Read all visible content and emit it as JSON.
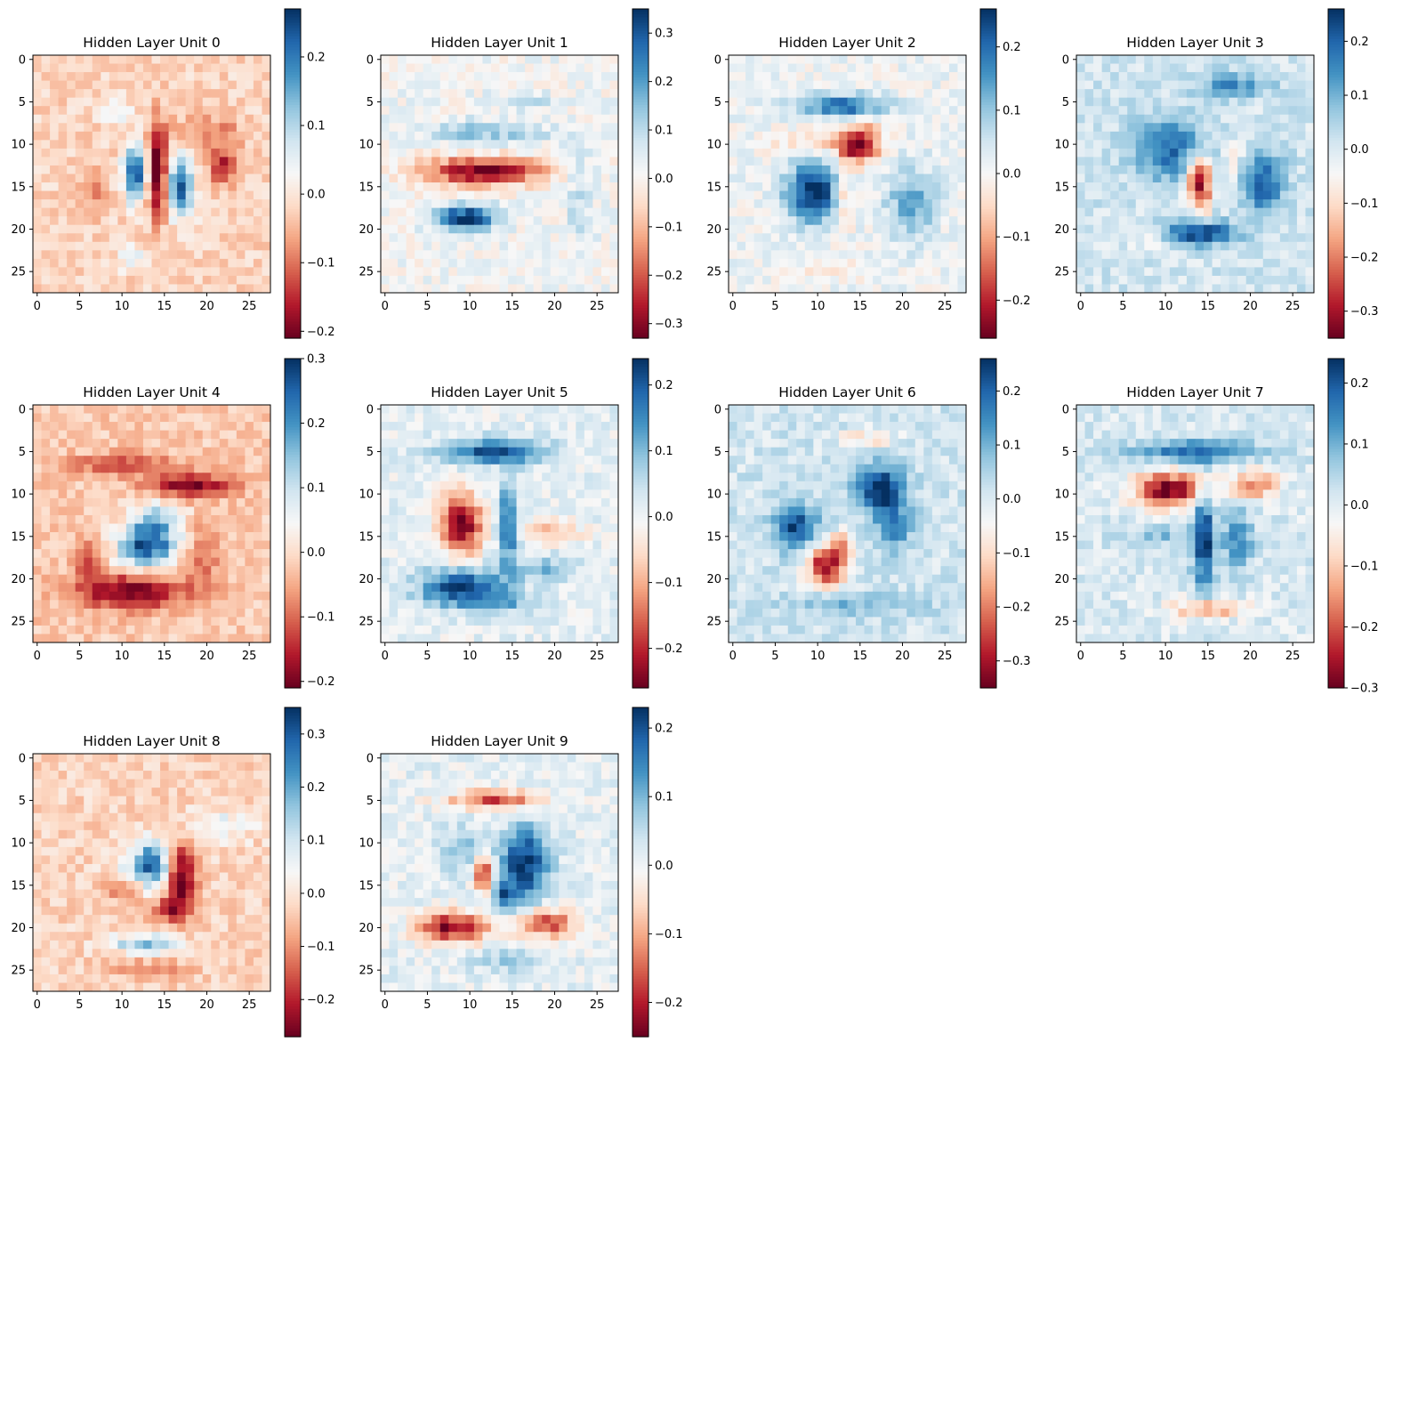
{
  "figure": {
    "background": "#ffffff"
  },
  "chart_data": [
    {
      "type": "heatmap",
      "title": "Hidden Layer Unit 0",
      "shape": [
        28,
        28
      ],
      "xlim": [
        0,
        27
      ],
      "ylim": [
        27,
        0
      ],
      "xticks": [
        "0",
        "5",
        "10",
        "15",
        "20",
        "25"
      ],
      "yticks": [
        "0",
        "5",
        "10",
        "15",
        "20",
        "25"
      ],
      "colorbar": {
        "cmap": "RdBu",
        "range": [
          -0.21,
          0.27
        ],
        "ticks": [
          "−0.2",
          "−0.1",
          "0.0",
          "0.1",
          "0.2"
        ]
      },
      "blobs": [
        {
          "r": 13.5,
          "c": 11.5,
          "sr": 2.2,
          "sc": 0.9,
          "a": 1.0
        },
        {
          "r": 15.0,
          "c": 17.0,
          "sr": 2.4,
          "sc": 1.0,
          "a": 1.0
        },
        {
          "r": 13.0,
          "c": 14.2,
          "sr": 4.0,
          "sc": 0.7,
          "a": -1.0
        },
        {
          "r": 12.5,
          "c": 22.0,
          "sr": 1.5,
          "sc": 1.2,
          "a": -0.7
        },
        {
          "r": 15.0,
          "c": 6.5,
          "sr": 2.0,
          "sc": 1.0,
          "a": -0.35
        },
        {
          "r": 6.0,
          "c": 9.5,
          "sr": 1.0,
          "sc": 1.2,
          "a": 0.3
        },
        {
          "r": 23.5,
          "c": 11.5,
          "sr": 1.0,
          "sc": 1.5,
          "a": 0.3
        },
        {
          "r": 8.5,
          "c": 20.0,
          "sr": 1.2,
          "sc": 3.0,
          "a": -0.35
        }
      ]
    },
    {
      "type": "heatmap",
      "title": "Hidden Layer Unit 1",
      "shape": [
        28,
        28
      ],
      "xlim": [
        0,
        27
      ],
      "ylim": [
        27,
        0
      ],
      "xticks": [
        "0",
        "5",
        "10",
        "15",
        "20",
        "25"
      ],
      "yticks": [
        "0",
        "5",
        "10",
        "15",
        "20",
        "25"
      ],
      "colorbar": {
        "cmap": "RdBu",
        "range": [
          -0.33,
          0.35
        ],
        "ticks": [
          "−0.3",
          "−0.2",
          "−0.1",
          "0.0",
          "0.1",
          "0.2",
          "0.3"
        ]
      },
      "blobs": [
        {
          "r": 13.2,
          "c": 11.5,
          "sr": 1.2,
          "sc": 5.0,
          "a": -1.0
        },
        {
          "r": 18.7,
          "c": 9.5,
          "sr": 1.0,
          "sc": 2.5,
          "a": 0.95
        },
        {
          "r": 8.7,
          "c": 12.0,
          "sr": 1.0,
          "sc": 5.0,
          "a": 0.35
        },
        {
          "r": 5.0,
          "c": 16.0,
          "sr": 0.8,
          "sc": 3.0,
          "a": 0.2
        },
        {
          "r": 16.0,
          "c": 23.0,
          "sr": 4.0,
          "sc": 1.2,
          "a": 0.2
        }
      ]
    },
    {
      "type": "heatmap",
      "title": "Hidden Layer Unit 2",
      "shape": [
        28,
        28
      ],
      "xlim": [
        0,
        27
      ],
      "ylim": [
        27,
        0
      ],
      "xticks": [
        "0",
        "5",
        "10",
        "15",
        "20",
        "25"
      ],
      "yticks": [
        "0",
        "5",
        "10",
        "15",
        "20",
        "25"
      ],
      "colorbar": {
        "cmap": "RdBu",
        "range": [
          -0.26,
          0.26
        ],
        "ticks": [
          "−0.2",
          "−0.1",
          "0.0",
          "0.1",
          "0.2"
        ]
      },
      "blobs": [
        {
          "r": 15.5,
          "c": 9.5,
          "sr": 2.5,
          "sc": 2.2,
          "a": 1.0
        },
        {
          "r": 10.0,
          "c": 15.0,
          "sr": 1.5,
          "sc": 1.5,
          "a": -1.0
        },
        {
          "r": 15.5,
          "c": 13.0,
          "sr": 3.0,
          "sc": 0.8,
          "a": -0.4
        },
        {
          "r": 5.5,
          "c": 13.0,
          "sr": 0.9,
          "sc": 3.5,
          "a": 0.75
        },
        {
          "r": 17.0,
          "c": 21.0,
          "sr": 3.0,
          "sc": 2.0,
          "a": 0.5
        },
        {
          "r": 10.0,
          "c": 10.0,
          "sr": 1.0,
          "sc": 4.0,
          "a": -0.3
        },
        {
          "r": 24.5,
          "c": 12.0,
          "sr": 0.8,
          "sc": 3.0,
          "a": -0.2
        }
      ]
    },
    {
      "type": "heatmap",
      "title": "Hidden Layer Unit 3",
      "shape": [
        28,
        28
      ],
      "xlim": [
        0,
        27
      ],
      "ylim": [
        27,
        0
      ],
      "xticks": [
        "0",
        "5",
        "10",
        "15",
        "20",
        "25"
      ],
      "yticks": [
        "0",
        "5",
        "10",
        "15",
        "20",
        "25"
      ],
      "colorbar": {
        "cmap": "RdBu",
        "range": [
          -0.35,
          0.26
        ],
        "ticks": [
          "−0.3",
          "−0.2",
          "−0.1",
          "0.0",
          "0.1",
          "0.2"
        ]
      },
      "blobs": [
        {
          "r": 14.5,
          "c": 14.0,
          "sr": 2.5,
          "sc": 1.0,
          "a": -1.0
        },
        {
          "r": 20.5,
          "c": 14.0,
          "sr": 1.0,
          "sc": 3.0,
          "a": 0.9
        },
        {
          "r": 10.5,
          "c": 10.5,
          "sr": 2.5,
          "sc": 3.0,
          "a": 0.7
        },
        {
          "r": 14.5,
          "c": 21.5,
          "sr": 2.5,
          "sc": 1.8,
          "a": 0.75
        },
        {
          "r": 3.0,
          "c": 18.0,
          "sr": 1.0,
          "sc": 3.0,
          "a": 0.5
        },
        {
          "r": 12.0,
          "c": 18.0,
          "sr": 1.5,
          "sc": 1.0,
          "a": -0.3
        },
        {
          "r": 21.5,
          "c": 8.0,
          "sr": 1.0,
          "sc": 2.0,
          "a": -0.2
        }
      ]
    },
    {
      "type": "heatmap",
      "title": "Hidden Layer Unit 4",
      "shape": [
        28,
        28
      ],
      "xlim": [
        0,
        27
      ],
      "ylim": [
        27,
        0
      ],
      "xticks": [
        "0",
        "5",
        "10",
        "15",
        "20",
        "25"
      ],
      "yticks": [
        "0",
        "5",
        "10",
        "15",
        "20",
        "25"
      ],
      "colorbar": {
        "cmap": "RdBu",
        "range": [
          -0.21,
          0.3
        ],
        "ticks": [
          "−0.2",
          "−0.1",
          "0.0",
          "0.1",
          "0.2",
          "0.3"
        ]
      },
      "blobs": [
        {
          "r": 16.0,
          "c": 13.0,
          "sr": 2.0,
          "sc": 2.5,
          "a": 1.0
        },
        {
          "r": 12.5,
          "c": 14.5,
          "sr": 1.5,
          "sc": 2.0,
          "a": 0.4
        },
        {
          "r": 9.0,
          "c": 18.0,
          "sr": 1.0,
          "sc": 3.5,
          "a": -0.85
        },
        {
          "r": 21.5,
          "c": 11.0,
          "sr": 1.5,
          "sc": 4.5,
          "a": -0.9
        },
        {
          "r": 6.5,
          "c": 10.0,
          "sr": 0.9,
          "sc": 4.0,
          "a": -0.5
        },
        {
          "r": 18.0,
          "c": 6.0,
          "sr": 2.0,
          "sc": 1.0,
          "a": -0.4
        },
        {
          "r": 17.5,
          "c": 19.5,
          "sr": 3.0,
          "sc": 1.5,
          "a": -0.3
        }
      ]
    },
    {
      "type": "heatmap",
      "title": "Hidden Layer Unit 5",
      "shape": [
        28,
        28
      ],
      "xlim": [
        0,
        27
      ],
      "ylim": [
        27,
        0
      ],
      "xticks": [
        "0",
        "5",
        "10",
        "15",
        "20",
        "25"
      ],
      "yticks": [
        "0",
        "5",
        "10",
        "15",
        "20",
        "25"
      ],
      "colorbar": {
        "cmap": "RdBu",
        "range": [
          -0.26,
          0.24
        ],
        "ticks": [
          "−0.2",
          "−0.1",
          "0.0",
          "0.1",
          "0.2"
        ]
      },
      "blobs": [
        {
          "r": 13.5,
          "c": 9.0,
          "sr": 2.5,
          "sc": 1.8,
          "a": -1.0
        },
        {
          "r": 13.5,
          "c": 14.5,
          "sr": 3.5,
          "sc": 0.8,
          "a": 0.8
        },
        {
          "r": 5.0,
          "c": 13.0,
          "sr": 1.0,
          "sc": 4.0,
          "a": 0.9
        },
        {
          "r": 21.0,
          "c": 9.0,
          "sr": 1.5,
          "sc": 3.5,
          "a": 0.9
        },
        {
          "r": 14.5,
          "c": 19.5,
          "sr": 1.0,
          "sc": 2.5,
          "a": -0.4
        },
        {
          "r": 19.0,
          "c": 19.0,
          "sr": 1.0,
          "sc": 2.5,
          "a": 0.4
        },
        {
          "r": 23.0,
          "c": 13.0,
          "sr": 0.8,
          "sc": 3.0,
          "a": 0.4
        }
      ]
    },
    {
      "type": "heatmap",
      "title": "Hidden Layer Unit 6",
      "shape": [
        28,
        28
      ],
      "xlim": [
        0,
        27
      ],
      "ylim": [
        27,
        0
      ],
      "xticks": [
        "0",
        "5",
        "10",
        "15",
        "20",
        "25"
      ],
      "yticks": [
        "0",
        "5",
        "10",
        "15",
        "20",
        "25"
      ],
      "colorbar": {
        "cmap": "RdBu",
        "range": [
          -0.35,
          0.26
        ],
        "ticks": [
          "−0.3",
          "−0.2",
          "−0.1",
          "0.0",
          "0.1",
          "0.2"
        ]
      },
      "blobs": [
        {
          "r": 9.5,
          "c": 17.5,
          "sr": 2.0,
          "sc": 2.0,
          "a": 1.0
        },
        {
          "r": 14.0,
          "c": 7.5,
          "sr": 1.8,
          "sc": 1.8,
          "a": 0.85
        },
        {
          "r": 14.0,
          "c": 19.0,
          "sr": 2.0,
          "sc": 1.5,
          "a": 0.5
        },
        {
          "r": 18.5,
          "c": 11.0,
          "sr": 1.8,
          "sc": 1.6,
          "a": -0.95
        },
        {
          "r": 16.0,
          "c": 13.0,
          "sr": 1.2,
          "sc": 1.0,
          "a": -0.5
        },
        {
          "r": 3.5,
          "c": 16.0,
          "sr": 0.8,
          "sc": 2.5,
          "a": -0.3
        },
        {
          "r": 23.0,
          "c": 14.0,
          "sr": 1.0,
          "sc": 6.0,
          "a": 0.3
        }
      ]
    },
    {
      "type": "heatmap",
      "title": "Hidden Layer Unit 7",
      "shape": [
        28,
        28
      ],
      "xlim": [
        0,
        27
      ],
      "ylim": [
        27,
        0
      ],
      "xticks": [
        "0",
        "5",
        "10",
        "15",
        "20",
        "25"
      ],
      "yticks": [
        "0",
        "5",
        "10",
        "15",
        "20",
        "25"
      ],
      "colorbar": {
        "cmap": "RdBu",
        "range": [
          -0.3,
          0.24
        ],
        "ticks": [
          "−0.3",
          "−0.2",
          "−0.1",
          "0.0",
          "0.1",
          "0.2"
        ]
      },
      "blobs": [
        {
          "r": 9.5,
          "c": 10.5,
          "sr": 1.5,
          "sc": 3.0,
          "a": -1.0
        },
        {
          "r": 15.5,
          "c": 14.5,
          "sr": 4.0,
          "sc": 0.9,
          "a": 0.95
        },
        {
          "r": 5.0,
          "c": 13.5,
          "sr": 0.9,
          "sc": 5.0,
          "a": 0.7
        },
        {
          "r": 15.5,
          "c": 18.5,
          "sr": 2.5,
          "sc": 1.2,
          "a": 0.6
        },
        {
          "r": 9.0,
          "c": 20.5,
          "sr": 1.2,
          "sc": 2.0,
          "a": -0.6
        },
        {
          "r": 23.5,
          "c": 15.0,
          "sr": 0.8,
          "sc": 3.0,
          "a": -0.6
        },
        {
          "r": 15.0,
          "c": 9.5,
          "sr": 0.8,
          "sc": 3.0,
          "a": 0.3
        }
      ]
    },
    {
      "type": "heatmap",
      "title": "Hidden Layer Unit 8",
      "shape": [
        28,
        28
      ],
      "xlim": [
        0,
        27
      ],
      "ylim": [
        27,
        0
      ],
      "xticks": [
        "0",
        "5",
        "10",
        "15",
        "20",
        "25"
      ],
      "yticks": [
        "0",
        "5",
        "10",
        "15",
        "20",
        "25"
      ],
      "colorbar": {
        "cmap": "RdBu",
        "range": [
          -0.27,
          0.35
        ],
        "ticks": [
          "−0.2",
          "−0.1",
          "0.0",
          "0.1",
          "0.2",
          "0.3"
        ]
      },
      "blobs": [
        {
          "r": 12.5,
          "c": 13.5,
          "sr": 1.8,
          "sc": 1.5,
          "a": 1.0
        },
        {
          "r": 14.5,
          "c": 17.0,
          "sr": 3.0,
          "sc": 1.2,
          "a": -1.0
        },
        {
          "r": 18.0,
          "c": 15.0,
          "sr": 1.0,
          "sc": 1.5,
          "a": -0.5
        },
        {
          "r": 22.0,
          "c": 13.0,
          "sr": 0.8,
          "sc": 3.0,
          "a": 0.6
        },
        {
          "r": 8.0,
          "c": 21.0,
          "sr": 1.5,
          "sc": 3.0,
          "a": 0.3
        },
        {
          "r": 15.0,
          "c": 10.0,
          "sr": 1.5,
          "sc": 1.5,
          "a": -0.3
        },
        {
          "r": 25.0,
          "c": 13.0,
          "sr": 0.8,
          "sc": 3.0,
          "a": -0.3
        },
        {
          "r": 13.0,
          "c": 10.0,
          "sr": 1.0,
          "sc": 1.5,
          "a": 0.3
        }
      ]
    },
    {
      "type": "heatmap",
      "title": "Hidden Layer Unit 9",
      "shape": [
        28,
        28
      ],
      "xlim": [
        0,
        27
      ],
      "ylim": [
        27,
        0
      ],
      "xticks": [
        "0",
        "5",
        "10",
        "15",
        "20",
        "25"
      ],
      "yticks": [
        "0",
        "5",
        "10",
        "15",
        "20",
        "25"
      ],
      "colorbar": {
        "cmap": "RdBu",
        "range": [
          -0.25,
          0.23
        ],
        "ticks": [
          "−0.2",
          "−0.1",
          "0.0",
          "0.1",
          "0.2"
        ]
      },
      "blobs": [
        {
          "r": 12.5,
          "c": 16.5,
          "sr": 3.0,
          "sc": 2.0,
          "a": 0.95
        },
        {
          "r": 16.5,
          "c": 14.0,
          "sr": 1.5,
          "sc": 0.8,
          "a": 0.6
        },
        {
          "r": 13.5,
          "c": 11.5,
          "sr": 1.5,
          "sc": 0.8,
          "a": -0.9
        },
        {
          "r": 20.0,
          "c": 8.0,
          "sr": 1.2,
          "sc": 3.0,
          "a": -1.0
        },
        {
          "r": 19.5,
          "c": 19.0,
          "sr": 1.2,
          "sc": 2.5,
          "a": -0.8
        },
        {
          "r": 5.0,
          "c": 13.0,
          "sr": 0.8,
          "sc": 4.0,
          "a": -0.7
        },
        {
          "r": 11.0,
          "c": 9.0,
          "sr": 2.0,
          "sc": 2.0,
          "a": 0.35
        },
        {
          "r": 24.0,
          "c": 15.0,
          "sr": 1.0,
          "sc": 3.0,
          "a": 0.3
        }
      ]
    }
  ]
}
